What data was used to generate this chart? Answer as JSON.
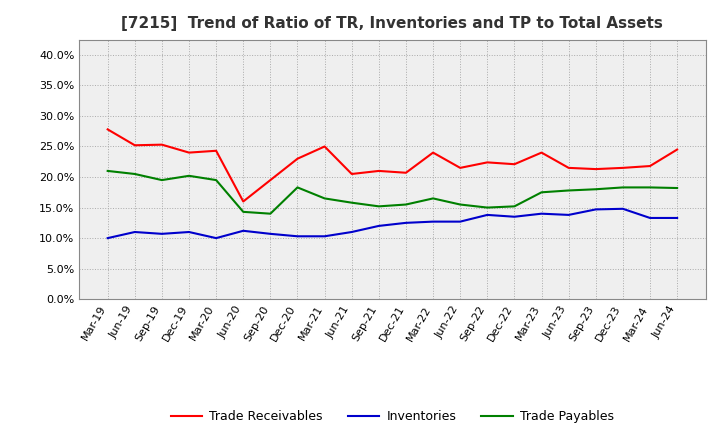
{
  "title": "[7215]  Trend of Ratio of TR, Inventories and TP to Total Assets",
  "xlabels": [
    "Mar-19",
    "Jun-19",
    "Sep-19",
    "Dec-19",
    "Mar-20",
    "Jun-20",
    "Sep-20",
    "Dec-20",
    "Mar-21",
    "Jun-21",
    "Sep-21",
    "Dec-21",
    "Mar-22",
    "Jun-22",
    "Sep-22",
    "Dec-22",
    "Mar-23",
    "Jun-23",
    "Sep-23",
    "Dec-23",
    "Mar-24",
    "Jun-24"
  ],
  "trade_receivables": [
    0.278,
    0.252,
    0.253,
    0.24,
    0.243,
    0.16,
    0.195,
    0.23,
    0.25,
    0.205,
    0.21,
    0.207,
    0.24,
    0.215,
    0.224,
    0.221,
    0.24,
    0.215,
    0.213,
    0.215,
    0.218,
    0.245
  ],
  "inventories": [
    0.1,
    0.11,
    0.107,
    0.11,
    0.1,
    0.112,
    0.107,
    0.103,
    0.103,
    0.11,
    0.12,
    0.125,
    0.127,
    0.127,
    0.138,
    0.135,
    0.14,
    0.138,
    0.147,
    0.148,
    0.133,
    0.133
  ],
  "trade_payables": [
    0.21,
    0.205,
    0.195,
    0.202,
    0.195,
    0.143,
    0.14,
    0.183,
    0.165,
    0.158,
    0.152,
    0.155,
    0.165,
    0.155,
    0.15,
    0.152,
    0.175,
    0.178,
    0.18,
    0.183,
    0.183,
    0.182
  ],
  "tr_color": "#FF0000",
  "inv_color": "#0000CC",
  "tp_color": "#008000",
  "ylim": [
    0.0,
    0.425
  ],
  "yticks": [
    0.0,
    0.05,
    0.1,
    0.15,
    0.2,
    0.25,
    0.3,
    0.35,
    0.4
  ],
  "legend_labels": [
    "Trade Receivables",
    "Inventories",
    "Trade Payables"
  ],
  "background_color": "#FFFFFF",
  "plot_bg_color": "#EFEFEF",
  "title_fontsize": 11,
  "tick_fontsize": 8,
  "legend_fontsize": 9
}
